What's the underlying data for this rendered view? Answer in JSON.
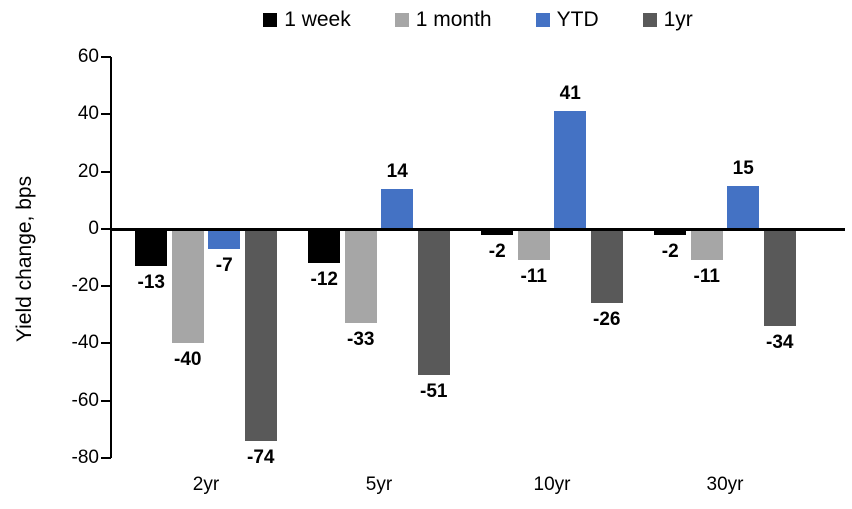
{
  "chart_data": {
    "type": "bar",
    "title": "",
    "xlabel": "",
    "ylabel": "Yield change, bps",
    "categories": [
      "2yr",
      "5yr",
      "10yr",
      "30yr"
    ],
    "series": [
      {
        "name": "1 week",
        "color": "#000000",
        "values": [
          -13,
          -12,
          -2,
          -2
        ]
      },
      {
        "name": "1 month",
        "color": "#A6A6A6",
        "values": [
          -40,
          -33,
          -11,
          -11
        ]
      },
      {
        "name": "YTD",
        "color": "#4472C4",
        "values": [
          -7,
          14,
          41,
          15
        ]
      },
      {
        "name": "1yr",
        "color": "#595959",
        "values": [
          -74,
          -51,
          -26,
          -34
        ]
      }
    ],
    "ylim": [
      -80,
      60
    ],
    "yticks": [
      60,
      40,
      20,
      0,
      -20,
      -40,
      -60,
      -80
    ],
    "grid": false,
    "legend_position": "top",
    "data_labels": true,
    "axis_color": "#000000",
    "background_color": "#FFFFFF"
  }
}
